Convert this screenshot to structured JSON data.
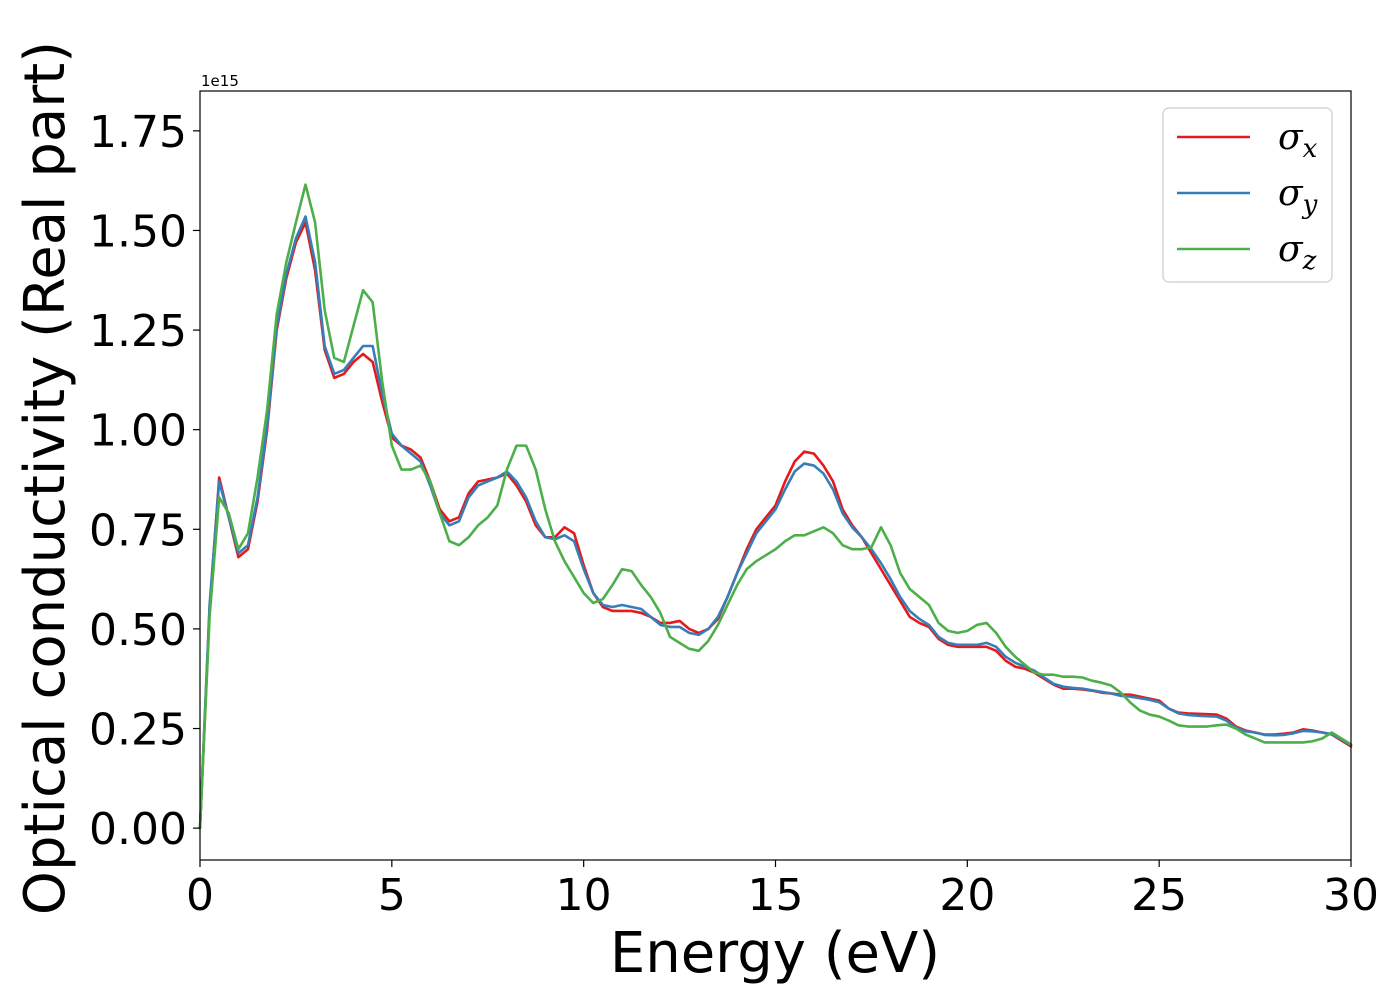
{
  "chart_data": {
    "type": "line",
    "xlabel": "Energy (eV)",
    "ylabel": "Optical conductivity (Real part)",
    "y_offset_label": "1e15",
    "xlim": [
      0,
      30
    ],
    "ylim": [
      -0.08,
      1.85
    ],
    "x_ticks": [
      0,
      5,
      10,
      15,
      20,
      25,
      30
    ],
    "x_tick_labels": [
      "0",
      "5",
      "10",
      "15",
      "20",
      "25",
      "30"
    ],
    "y_ticks": [
      0.0,
      0.25,
      0.5,
      0.75,
      1.0,
      1.25,
      1.5,
      1.75
    ],
    "y_tick_labels": [
      "0.00",
      "0.25",
      "0.50",
      "0.75",
      "1.00",
      "1.25",
      "1.50",
      "1.75"
    ],
    "grid": false,
    "legend_position": "top-right",
    "x": [
      0,
      0.25,
      0.5,
      0.75,
      1,
      1.25,
      1.5,
      1.75,
      2,
      2.25,
      2.5,
      2.75,
      3,
      3.25,
      3.5,
      3.75,
      4,
      4.25,
      4.5,
      4.75,
      5,
      5.25,
      5.5,
      5.75,
      6,
      6.25,
      6.5,
      6.75,
      7,
      7.25,
      7.5,
      7.75,
      8,
      8.25,
      8.5,
      8.75,
      9,
      9.25,
      9.5,
      9.75,
      10,
      10.25,
      10.5,
      10.75,
      11,
      11.25,
      11.5,
      11.75,
      12,
      12.25,
      12.5,
      12.75,
      13,
      13.25,
      13.5,
      13.75,
      14,
      14.25,
      14.5,
      14.75,
      15,
      15.25,
      15.5,
      15.75,
      16,
      16.25,
      16.5,
      16.75,
      17,
      17.25,
      17.5,
      17.75,
      18,
      18.25,
      18.5,
      18.75,
      19,
      19.25,
      19.5,
      19.75,
      20,
      20.25,
      20.5,
      20.75,
      21,
      21.25,
      21.5,
      21.75,
      22,
      22.25,
      22.5,
      22.75,
      23,
      23.25,
      23.5,
      23.75,
      24,
      24.25,
      24.5,
      24.75,
      25,
      25.25,
      25.5,
      25.75,
      26,
      26.25,
      26.5,
      26.75,
      27,
      27.25,
      27.5,
      27.75,
      28,
      28.25,
      28.5,
      28.75,
      29,
      29.25,
      29.5,
      29.75,
      30
    ],
    "series": [
      {
        "name": "σ",
        "subscript": "x",
        "color": "#e41a1c",
        "values": [
          0.0,
          0.55,
          0.88,
          0.78,
          0.68,
          0.7,
          0.82,
          1.0,
          1.25,
          1.38,
          1.47,
          1.52,
          1.4,
          1.2,
          1.13,
          1.14,
          1.17,
          1.19,
          1.17,
          1.07,
          0.98,
          0.96,
          0.95,
          0.93,
          0.87,
          0.8,
          0.77,
          0.78,
          0.84,
          0.87,
          0.875,
          0.88,
          0.89,
          0.86,
          0.82,
          0.76,
          0.73,
          0.73,
          0.755,
          0.74,
          0.66,
          0.59,
          0.555,
          0.545,
          0.545,
          0.545,
          0.54,
          0.53,
          0.515,
          0.515,
          0.52,
          0.5,
          0.49,
          0.5,
          0.525,
          0.58,
          0.64,
          0.7,
          0.75,
          0.78,
          0.81,
          0.87,
          0.92,
          0.945,
          0.94,
          0.91,
          0.87,
          0.8,
          0.76,
          0.73,
          0.69,
          0.65,
          0.61,
          0.57,
          0.53,
          0.515,
          0.505,
          0.475,
          0.46,
          0.455,
          0.455,
          0.455,
          0.455,
          0.445,
          0.42,
          0.405,
          0.4,
          0.39,
          0.375,
          0.36,
          0.35,
          0.35,
          0.348,
          0.345,
          0.34,
          0.338,
          0.335,
          0.335,
          0.33,
          0.325,
          0.32,
          0.3,
          0.29,
          0.288,
          0.287,
          0.286,
          0.285,
          0.275,
          0.255,
          0.245,
          0.24,
          0.235,
          0.235,
          0.237,
          0.24,
          0.248,
          0.245,
          0.24,
          0.235,
          0.22,
          0.205
        ]
      },
      {
        "name": "σ",
        "subscript": "y",
        "color": "#377eb8",
        "values": [
          0.0,
          0.56,
          0.87,
          0.78,
          0.69,
          0.71,
          0.83,
          1.01,
          1.26,
          1.39,
          1.48,
          1.535,
          1.42,
          1.21,
          1.14,
          1.15,
          1.18,
          1.21,
          1.21,
          1.09,
          0.99,
          0.96,
          0.94,
          0.92,
          0.86,
          0.79,
          0.76,
          0.77,
          0.83,
          0.86,
          0.87,
          0.88,
          0.895,
          0.87,
          0.83,
          0.77,
          0.73,
          0.725,
          0.735,
          0.72,
          0.65,
          0.59,
          0.56,
          0.555,
          0.56,
          0.555,
          0.55,
          0.53,
          0.51,
          0.505,
          0.505,
          0.49,
          0.485,
          0.5,
          0.53,
          0.58,
          0.64,
          0.69,
          0.74,
          0.77,
          0.8,
          0.85,
          0.895,
          0.915,
          0.91,
          0.89,
          0.85,
          0.79,
          0.755,
          0.73,
          0.7,
          0.665,
          0.625,
          0.58,
          0.545,
          0.525,
          0.51,
          0.48,
          0.465,
          0.46,
          0.46,
          0.46,
          0.465,
          0.455,
          0.43,
          0.415,
          0.405,
          0.395,
          0.378,
          0.362,
          0.355,
          0.352,
          0.35,
          0.346,
          0.342,
          0.338,
          0.332,
          0.33,
          0.326,
          0.322,
          0.316,
          0.3,
          0.288,
          0.284,
          0.282,
          0.281,
          0.28,
          0.27,
          0.252,
          0.243,
          0.24,
          0.234,
          0.233,
          0.234,
          0.238,
          0.244,
          0.243,
          0.24,
          0.236,
          0.222,
          0.208
        ]
      },
      {
        "name": "σ",
        "subscript": "z",
        "color": "#4daf4a",
        "values": [
          0.0,
          0.53,
          0.83,
          0.79,
          0.7,
          0.74,
          0.88,
          1.05,
          1.29,
          1.42,
          1.52,
          1.615,
          1.52,
          1.3,
          1.18,
          1.17,
          1.26,
          1.35,
          1.32,
          1.12,
          0.96,
          0.9,
          0.9,
          0.91,
          0.87,
          0.79,
          0.72,
          0.71,
          0.73,
          0.76,
          0.78,
          0.81,
          0.9,
          0.96,
          0.96,
          0.9,
          0.8,
          0.72,
          0.67,
          0.63,
          0.59,
          0.565,
          0.575,
          0.61,
          0.65,
          0.645,
          0.61,
          0.58,
          0.54,
          0.48,
          0.465,
          0.45,
          0.445,
          0.47,
          0.51,
          0.56,
          0.61,
          0.65,
          0.67,
          0.685,
          0.7,
          0.72,
          0.735,
          0.735,
          0.745,
          0.755,
          0.74,
          0.71,
          0.7,
          0.7,
          0.705,
          0.755,
          0.71,
          0.64,
          0.6,
          0.58,
          0.56,
          0.515,
          0.495,
          0.49,
          0.495,
          0.51,
          0.515,
          0.49,
          0.455,
          0.43,
          0.41,
          0.39,
          0.385,
          0.385,
          0.38,
          0.38,
          0.378,
          0.37,
          0.365,
          0.358,
          0.34,
          0.315,
          0.295,
          0.285,
          0.28,
          0.27,
          0.258,
          0.255,
          0.255,
          0.255,
          0.258,
          0.26,
          0.25,
          0.235,
          0.225,
          0.215,
          0.215,
          0.215,
          0.215,
          0.215,
          0.218,
          0.225,
          0.24,
          0.225,
          0.21
        ]
      }
    ]
  }
}
